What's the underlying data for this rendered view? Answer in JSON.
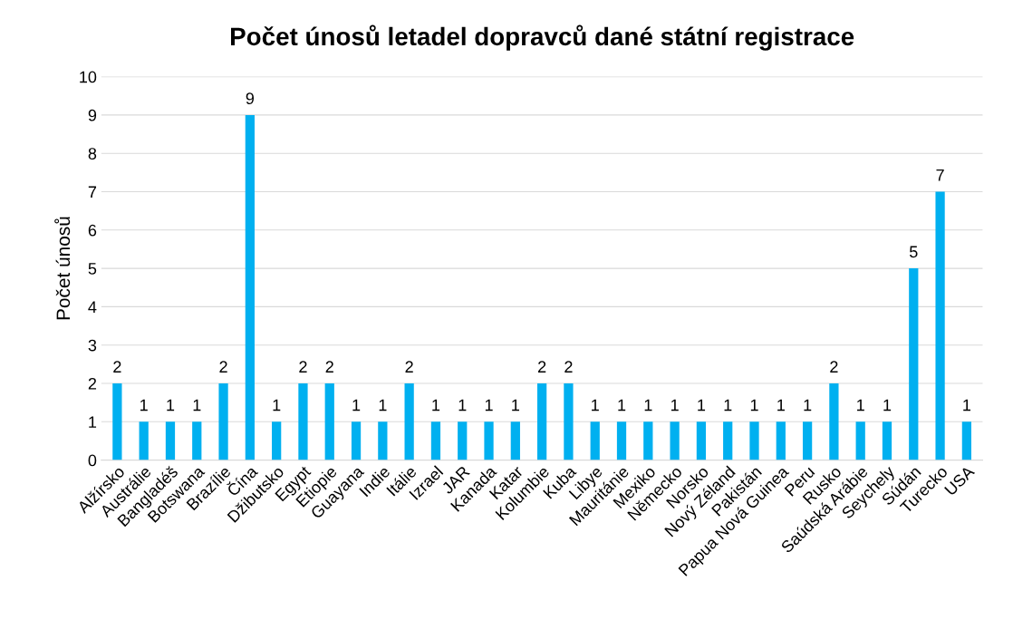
{
  "chart_data": {
    "type": "bar",
    "title": "Počet únosů letadel dopravců dané státní registrace",
    "ylabel": "Počet únosů",
    "categories": [
      "Alžírsko",
      "Austrálie",
      "Bangladéš",
      "Botswana",
      "Brazílie",
      "Čína",
      "Džibutsko",
      "Egypt",
      "Etiopie",
      "Guayana",
      "Indie",
      "Itálie",
      "Izrael",
      "JAR",
      "Kanada",
      "Katar",
      "Kolumbie",
      "Kuba",
      "Libye",
      "Mauritánie",
      "Mexiko",
      "Německo",
      "Norsko",
      "Nový Zéland",
      "Pakistán",
      "Papua Nová Guinea",
      "Peru",
      "Rusko",
      "Saúdská Arábie",
      "Seychely",
      "Súdán",
      "Turecko",
      "USA"
    ],
    "values": [
      2,
      1,
      1,
      1,
      2,
      9,
      1,
      2,
      2,
      1,
      1,
      2,
      1,
      1,
      1,
      1,
      2,
      2,
      1,
      1,
      1,
      1,
      1,
      1,
      1,
      1,
      1,
      2,
      1,
      1,
      5,
      7,
      1
    ],
    "color": "#00b0f0",
    "ylim": [
      0,
      10
    ],
    "yticks": [
      0,
      1,
      2,
      3,
      4,
      5,
      6,
      7,
      8,
      9,
      10
    ],
    "grid": "y",
    "data_labels": true
  }
}
